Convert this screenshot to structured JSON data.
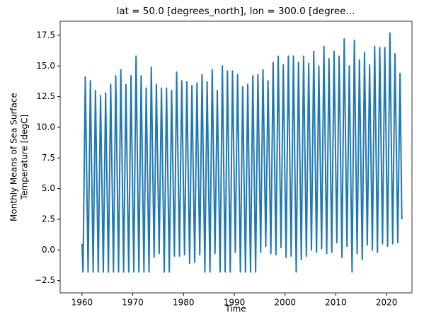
{
  "chart_data": {
    "type": "line",
    "title": "lat = 50.0 [degrees_north], lon = 300.0 [degree...",
    "xlabel": "Time",
    "ylabel": [
      "Monthly Means of Sea Surface",
      "Temperature [degC]"
    ],
    "color": "#1f77b4",
    "xlim": [
      1955.7,
      2025.0
    ],
    "ylim": [
      -3.5,
      18.65
    ],
    "xticks": [
      1960,
      1970,
      1980,
      1990,
      2000,
      2010,
      2020
    ],
    "yticks": [
      {
        "value": -2.5,
        "label": "−2.5"
      },
      {
        "value": 0,
        "label": "0.0"
      },
      2.5,
      {
        "value": 5,
        "label": "5.0"
      },
      7.5,
      {
        "value": 10,
        "label": "10.0"
      },
      12.5,
      {
        "value": 15,
        "label": "15.0"
      },
      17.5
    ],
    "x": [
      1960,
      1960.2,
      1960.65,
      1961.2,
      1961.65,
      1962.2,
      1962.65,
      1963.2,
      1963.65,
      1964.2,
      1964.65,
      1965.2,
      1965.65,
      1966.2,
      1966.65,
      1967.2,
      1967.65,
      1968.2,
      1968.65,
      1969.2,
      1969.65,
      1970.2,
      1970.65,
      1971.2,
      1971.65,
      1972.2,
      1972.65,
      1973.2,
      1973.65,
      1974.2,
      1974.65,
      1975.2,
      1975.65,
      1976.2,
      1976.65,
      1977.2,
      1977.65,
      1978.2,
      1978.65,
      1979.2,
      1979.65,
      1980.2,
      1980.65,
      1981.2,
      1981.65,
      1982.2,
      1982.65,
      1983.2,
      1983.65,
      1984.2,
      1984.65,
      1985.2,
      1985.65,
      1986.2,
      1986.65,
      1987.2,
      1987.65,
      1988.2,
      1988.65,
      1989.2,
      1989.65,
      1990.2,
      1990.65,
      1991.2,
      1991.65,
      1992.2,
      1992.65,
      1993.2,
      1993.65,
      1994.2,
      1994.65,
      1995.2,
      1995.65,
      1996.2,
      1996.65,
      1997.2,
      1997.65,
      1998.2,
      1998.65,
      1999.2,
      1999.65,
      2000.2,
      2000.65,
      2001.2,
      2001.65,
      2002.2,
      2002.65,
      2003.2,
      2003.65,
      2004.2,
      2004.65,
      2005.2,
      2005.65,
      2006.2,
      2006.65,
      2007.2,
      2007.65,
      2008.2,
      2008.65,
      2009.2,
      2009.65,
      2010.2,
      2010.65,
      2011.2,
      2011.65,
      2012.2,
      2012.65,
      2013.2,
      2013.65,
      2014.2,
      2014.65,
      2015.2,
      2015.65,
      2016.2,
      2016.65,
      2017.2,
      2017.65,
      2018.2,
      2018.65,
      2019.2,
      2019.65,
      2020.2,
      2020.65,
      2021.2,
      2021.65,
      2022.2,
      2022.65,
      2023.0
    ],
    "values": [
      0.5,
      -1.8,
      14.1,
      -1.8,
      13.8,
      -1.8,
      13.0,
      -1.8,
      12.6,
      -1.8,
      12.8,
      -1.8,
      13.5,
      -1.8,
      14.2,
      -1.8,
      14.7,
      -1.8,
      13.5,
      -1.8,
      14.2,
      -1.8,
      15.8,
      -1.8,
      14.2,
      -1.8,
      13.2,
      -1.8,
      14.9,
      -0.6,
      13.5,
      -0.3,
      13.2,
      -1.8,
      13.2,
      -1.8,
      13.0,
      -0.5,
      14.5,
      -0.5,
      13.8,
      -0.4,
      13.7,
      -1.1,
      13.4,
      -1.0,
      13.6,
      -0.4,
      14.3,
      -1.8,
      13.7,
      -1.8,
      14.7,
      -0.3,
      13.0,
      -1.8,
      15.0,
      -1.8,
      14.6,
      -1.8,
      14.6,
      -0.2,
      14.3,
      -1.8,
      13.3,
      -1.8,
      13.5,
      -1.8,
      14.2,
      -1.8,
      14.3,
      -0.2,
      14.7,
      0.3,
      13.8,
      -0.3,
      15.3,
      -0.4,
      15.8,
      0.2,
      15.1,
      -0.6,
      15.8,
      -0.5,
      15.8,
      -1.8,
      15.3,
      -0.8,
      15.8,
      -0.5,
      15.2,
      0.0,
      16.2,
      -0.2,
      15.0,
      0.1,
      16.6,
      -0.3,
      15.6,
      -0.2,
      16.2,
      0.6,
      15.8,
      -0.6,
      17.2,
      0.3,
      15.0,
      -1.8,
      17.1,
      -0.3,
      15.5,
      -0.8,
      16.1,
      0.4,
      15.1,
      0.0,
      16.6,
      -0.2,
      16.5,
      0.5,
      16.5,
      0.3,
      17.7,
      0.5,
      16.0,
      0.6,
      14.4,
      2.5
    ]
  }
}
